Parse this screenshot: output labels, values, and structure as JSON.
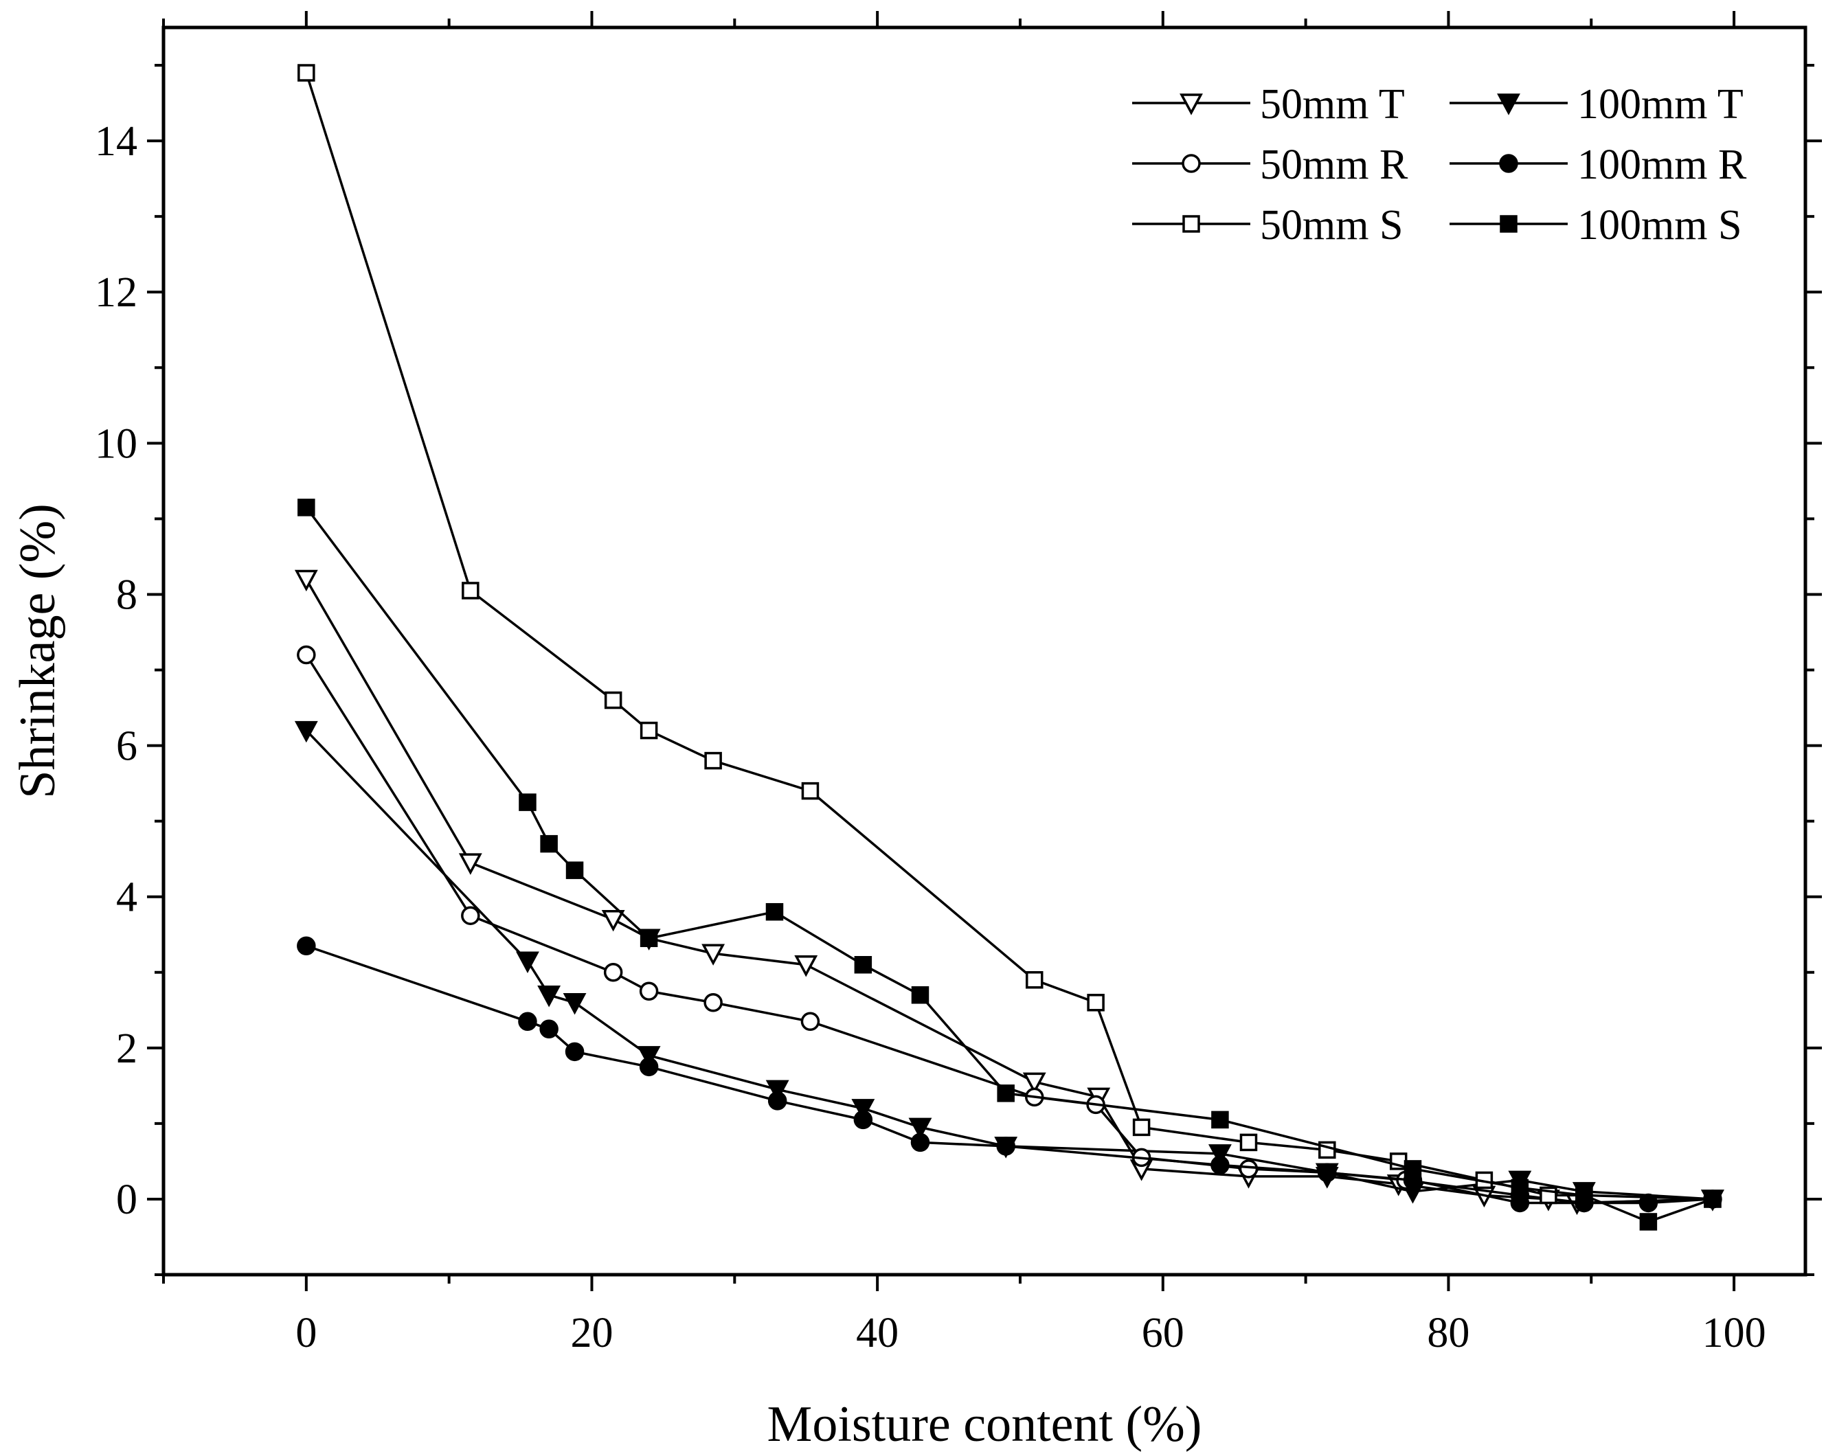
{
  "chart_data": {
    "type": "line",
    "title": "",
    "xlabel": "Moisture content (%)",
    "ylabel": "Shrinkage (%)",
    "xlim": [
      -10,
      105
    ],
    "ylim": [
      -1,
      15.5
    ],
    "xticks": [
      0,
      20,
      40,
      60,
      80,
      100
    ],
    "xtick_labels": [
      "0",
      "20",
      "40",
      "60",
      "80",
      "100"
    ],
    "yticks": [
      0,
      2,
      4,
      6,
      8,
      10,
      12,
      14
    ],
    "ytick_labels": [
      "0",
      "2",
      "4",
      "6",
      "8",
      "10",
      "12",
      "14"
    ],
    "legend_position": "top-right",
    "series": [
      {
        "name": "50mm T",
        "marker": "triangle-down-open",
        "x": [
          0,
          11.5,
          21.5,
          24,
          28.5,
          35,
          51,
          55.5,
          58.5,
          66,
          71.5,
          76.5,
          82.5,
          87,
          89,
          98.5
        ],
        "y": [
          8.2,
          4.45,
          3.7,
          3.45,
          3.25,
          3.1,
          1.55,
          1.35,
          0.4,
          0.3,
          0.3,
          0.2,
          0.05,
          0.0,
          -0.05,
          0.0
        ]
      },
      {
        "name": "100mm T",
        "marker": "triangle-down-filled",
        "x": [
          0,
          15.5,
          17,
          18.8,
          24,
          33,
          39,
          43,
          49,
          64,
          71.5,
          77.5,
          85,
          89.5,
          98.5
        ],
        "y": [
          6.2,
          3.15,
          2.7,
          2.6,
          1.9,
          1.45,
          1.2,
          0.95,
          0.7,
          0.6,
          0.35,
          0.1,
          0.25,
          0.1,
          0.0
        ]
      },
      {
        "name": "50mm R",
        "marker": "circle-open",
        "x": [
          0,
          11.5,
          21.5,
          24,
          28.5,
          35.3,
          51,
          55.3,
          58.5,
          66,
          71.5,
          77,
          85,
          89.5,
          98.5
        ],
        "y": [
          7.2,
          3.75,
          3.0,
          2.75,
          2.6,
          2.35,
          1.35,
          1.25,
          0.55,
          0.4,
          0.35,
          0.25,
          0.05,
          -0.05,
          0.0
        ]
      },
      {
        "name": "100mm R",
        "marker": "circle-filled",
        "x": [
          0,
          15.5,
          17,
          18.8,
          24,
          33,
          39,
          43,
          49,
          64,
          71.5,
          77.5,
          85,
          89.5,
          94,
          98.5
        ],
        "y": [
          3.35,
          2.35,
          2.25,
          1.95,
          1.75,
          1.3,
          1.05,
          0.75,
          0.7,
          0.45,
          0.35,
          0.25,
          -0.05,
          -0.05,
          -0.05,
          0.0
        ]
      },
      {
        "name": "50mm S",
        "marker": "square-open",
        "x": [
          0,
          11.5,
          21.5,
          24,
          28.5,
          35.3,
          51,
          55.3,
          58.5,
          66,
          71.5,
          76.5,
          82.5,
          87,
          89.5,
          98.5
        ],
        "y": [
          14.9,
          8.05,
          6.6,
          6.2,
          5.8,
          5.4,
          2.9,
          2.6,
          0.95,
          0.75,
          0.65,
          0.5,
          0.25,
          0.05,
          0.05,
          0.0
        ]
      },
      {
        "name": "100mm S",
        "marker": "square-filled",
        "x": [
          0,
          15.5,
          17,
          18.8,
          24,
          32.8,
          39,
          43,
          49,
          64,
          77.5,
          85,
          89.5,
          94,
          98.5
        ],
        "y": [
          9.15,
          5.25,
          4.7,
          4.35,
          3.45,
          3.8,
          3.1,
          2.7,
          1.4,
          1.05,
          0.4,
          0.15,
          0.05,
          -0.3,
          0.0
        ]
      }
    ]
  }
}
